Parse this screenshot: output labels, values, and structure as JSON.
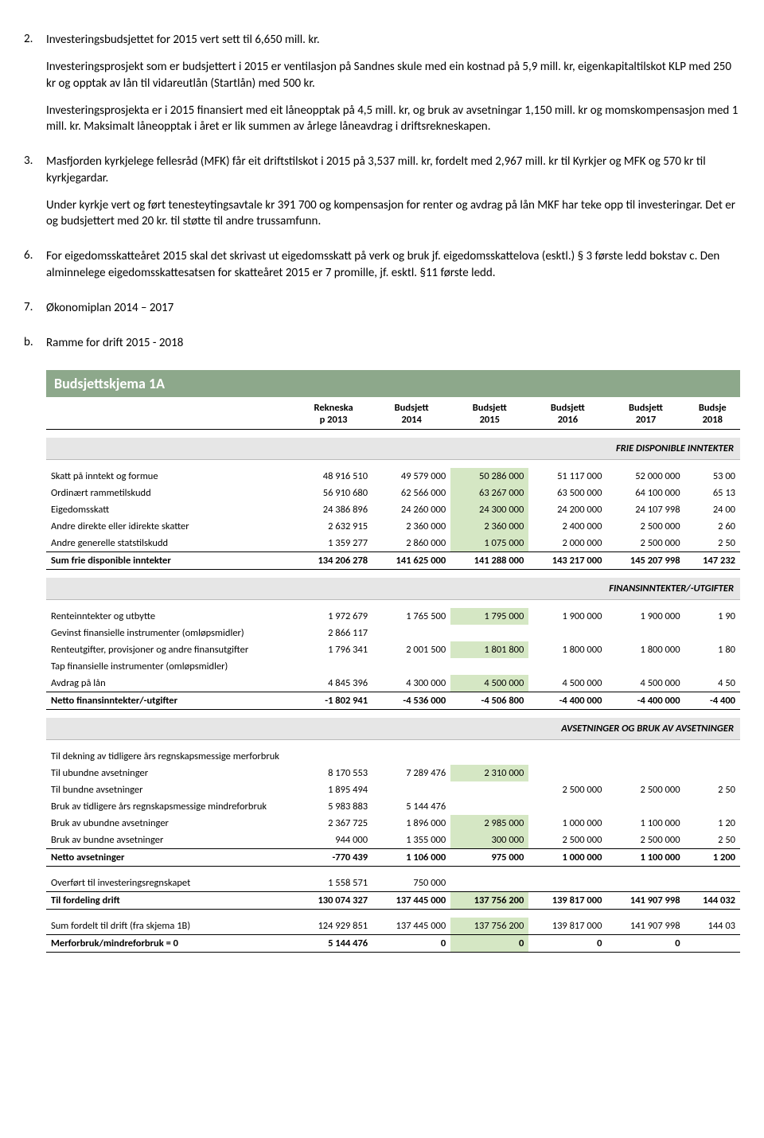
{
  "items": [
    {
      "num": "2.",
      "paras": [
        "Investeringsbudsjettet for 2015 vert sett til 6,650 mill. kr.",
        "Investeringsprosjekt som er budsjettert i 2015 er ventilasjon på Sandnes skule med ein kostnad på 5,9 mill. kr, eigenkapitaltilskot KLP med 250 kr og opptak av lån til vidareutlån (Startlån) med 500 kr.",
        "Investeringsprosjekta er i 2015 finansiert med eit låneopptak på 4,5 mill. kr, og bruk av avsetningar 1,150 mill. kr og momskompensasjon med 1 mill. kr. Maksimalt låneopptak i året er lik summen av årlege låneavdrag i driftsrekneskapen."
      ]
    },
    {
      "num": "3.",
      "paras": [
        "Masfjorden kyrkjelege fellesråd (MFK) får eit driftstilskot i 2015 på 3,537 mill. kr, fordelt med 2,967 mill. kr til Kyrkjer og MFK og 570 kr til kyrkjegardar.",
        "Under kyrkje vert og ført tenesteytingsavtale kr 391 700 og kompensasjon for renter og avdrag på lån MKF har teke opp til investeringar. Det er og budsjettert med 20 kr. til støtte til andre trussamfunn."
      ]
    },
    {
      "num": "6.",
      "paras": [
        "For eigedomsskatteåret 2015 skal det skrivast ut eigedomsskatt på verk og bruk jf. eigedomsskattelova (esktl.) § 3 første ledd bokstav c. Den alminnelege eigedomsskattesatsen for skatteåret 2015 er 7 promille, jf. esktl. §11 første ledd."
      ]
    },
    {
      "num": "7.",
      "paras": [
        "Økonomiplan 2014 – 2017"
      ]
    },
    {
      "num": "b.",
      "paras": [
        "Ramme for drift 2015 - 2018"
      ]
    }
  ],
  "schema_title": "Budsjettskjema 1A",
  "columns": [
    {
      "l1": "",
      "l2": ""
    },
    {
      "l1": "Rekneska",
      "l2": "p 2013"
    },
    {
      "l1": "Budsjett",
      "l2": "2014"
    },
    {
      "l1": "Budsjett",
      "l2": "2015"
    },
    {
      "l1": "Budsjett",
      "l2": "2016"
    },
    {
      "l1": "Budsjett",
      "l2": "2017"
    },
    {
      "l1": "Budsje",
      "l2": "2018"
    }
  ],
  "sections": [
    {
      "title": "FRIE DISPONIBLE INNTEKTER",
      "rows": [
        {
          "label": "Skatt på inntekt og formue",
          "v": [
            "48 916 510",
            "49 579 000",
            "50 286 000",
            "51 117 000",
            "52 000 000",
            "53 00"
          ],
          "hl": 2
        },
        {
          "label": "Ordinært rammetilskudd",
          "v": [
            "56 910 680",
            "62 566 000",
            "63 267 000",
            "63 500 000",
            "64 100 000",
            "65 13"
          ],
          "hl": 2
        },
        {
          "label": "Eigedomsskatt",
          "v": [
            "24 386 896",
            "24 260 000",
            "24 300 000",
            "24 200 000",
            "24 107 998",
            "24 00"
          ],
          "hl": 2
        },
        {
          "label": "Andre direkte eller idirekte skatter",
          "v": [
            "2 632 915",
            "2 360 000",
            "2 360 000",
            "2 400 000",
            "2 500 000",
            "2 60"
          ],
          "hl": 2
        },
        {
          "label": "Andre generelle statstilskudd",
          "v": [
            "1 359 277",
            "2 860 000",
            "1 075 000",
            "2 000 000",
            "2 500 000",
            "2 50"
          ],
          "hl": 2
        }
      ],
      "sum": {
        "label": "Sum frie disponible inntekter",
        "v": [
          "134 206 278",
          "141 625 000",
          "141 288 000",
          "143 217 000",
          "145 207 998",
          "147 232"
        ]
      }
    },
    {
      "title": "FINANSINNTEKTER/-UTGIFTER",
      "rows": [
        {
          "label": "Renteinntekter og utbytte",
          "v": [
            "1 972 679",
            "1 765 500",
            "1 795 000",
            "1 900 000",
            "1 900 000",
            "1 90"
          ],
          "hl": 2
        },
        {
          "label": "Gevinst finansielle instrumenter (omløpsmidler)",
          "v": [
            "2 866 117",
            "",
            "",
            "",
            "",
            ""
          ],
          "hl": -1
        },
        {
          "label": "Renteutgifter, provisjoner og andre finansutgifter",
          "v": [
            "1 796 341",
            "2 001 500",
            "1 801 800",
            "1 800 000",
            "1 800 000",
            "1 80"
          ],
          "hl": 2
        },
        {
          "label": "Tap finansielle instrumenter (omløpsmidler)",
          "v": [
            "",
            "",
            "",
            "",
            "",
            ""
          ],
          "hl": -1
        },
        {
          "label": "Avdrag på lån",
          "v": [
            "4 845 396",
            "4 300 000",
            "4 500 000",
            "4 500 000",
            "4 500 000",
            "4 50"
          ],
          "hl": 2
        }
      ],
      "sum": {
        "label": "Netto finansinntekter/-utgifter",
        "v": [
          "-1 802 941",
          "-4 536 000",
          "-4 506 800",
          "-4 400 000",
          "-4 400 000",
          "-4 400"
        ]
      }
    },
    {
      "title": "AVSETNINGER OG BRUK AV AVSETNINGER",
      "rows": [
        {
          "label": "Til dekning av tidligere års regnskapsmessige merforbruk",
          "v": [
            "",
            "",
            "",
            "",
            "",
            ""
          ],
          "hl": -1
        },
        {
          "label": "Til ubundne avsetninger",
          "v": [
            "8 170 553",
            "7 289 476",
            "2 310 000",
            "",
            "",
            ""
          ],
          "hl": 2
        },
        {
          "label": "Til bundne avsetninger",
          "v": [
            "1 895 494",
            "",
            "",
            "2 500 000",
            "2 500 000",
            "2 50"
          ],
          "hl": -1
        },
        {
          "label": "Bruk av tidligere års regnskapsmessige mindreforbruk",
          "v": [
            "5 983 883",
            "5 144 476",
            "",
            "",
            "",
            ""
          ],
          "hl": -1
        },
        {
          "label": "Bruk av ubundne avsetninger",
          "v": [
            "2 367 725",
            "1 896 000",
            "2 985 000",
            "1 000 000",
            "1 100 000",
            "1 20"
          ],
          "hl": 2
        },
        {
          "label": "Bruk av bundne avsetninger",
          "v": [
            "944 000",
            "1 355 000",
            "300 000",
            "2 500 000",
            "2 500 000",
            "2 50"
          ],
          "hl": 2
        }
      ],
      "sum": {
        "label": "Netto avsetninger",
        "v": [
          "-770 439",
          "1 106 000",
          "975 000",
          "1 000 000",
          "1 100 000",
          "1 200"
        ]
      }
    }
  ],
  "bottom": [
    {
      "label": "Overført til investeringsregnskapet",
      "v": [
        "1 558 571",
        "750 000",
        "",
        "",
        "",
        ""
      ],
      "hl": -1,
      "sum": false
    },
    {
      "label": "Til fordeling drift",
      "v": [
        "130 074 327",
        "137 445 000",
        "137 756 200",
        "139 817 000",
        "141 907 998",
        "144 032"
      ],
      "hl": 2,
      "sum": true
    }
  ],
  "final": [
    {
      "label": "Sum fordelt til drift (fra skjema 1B)",
      "v": [
        "124 929 851",
        "137 445 000",
        "137 756 200",
        "139 817 000",
        "141 907 998",
        "144 03"
      ],
      "hl": 2
    },
    {
      "label": "Merforbruk/mindreforbruk = 0",
      "v": [
        "5 144 476",
        "0",
        "0",
        "0",
        "0",
        ""
      ],
      "hl": 2
    }
  ]
}
